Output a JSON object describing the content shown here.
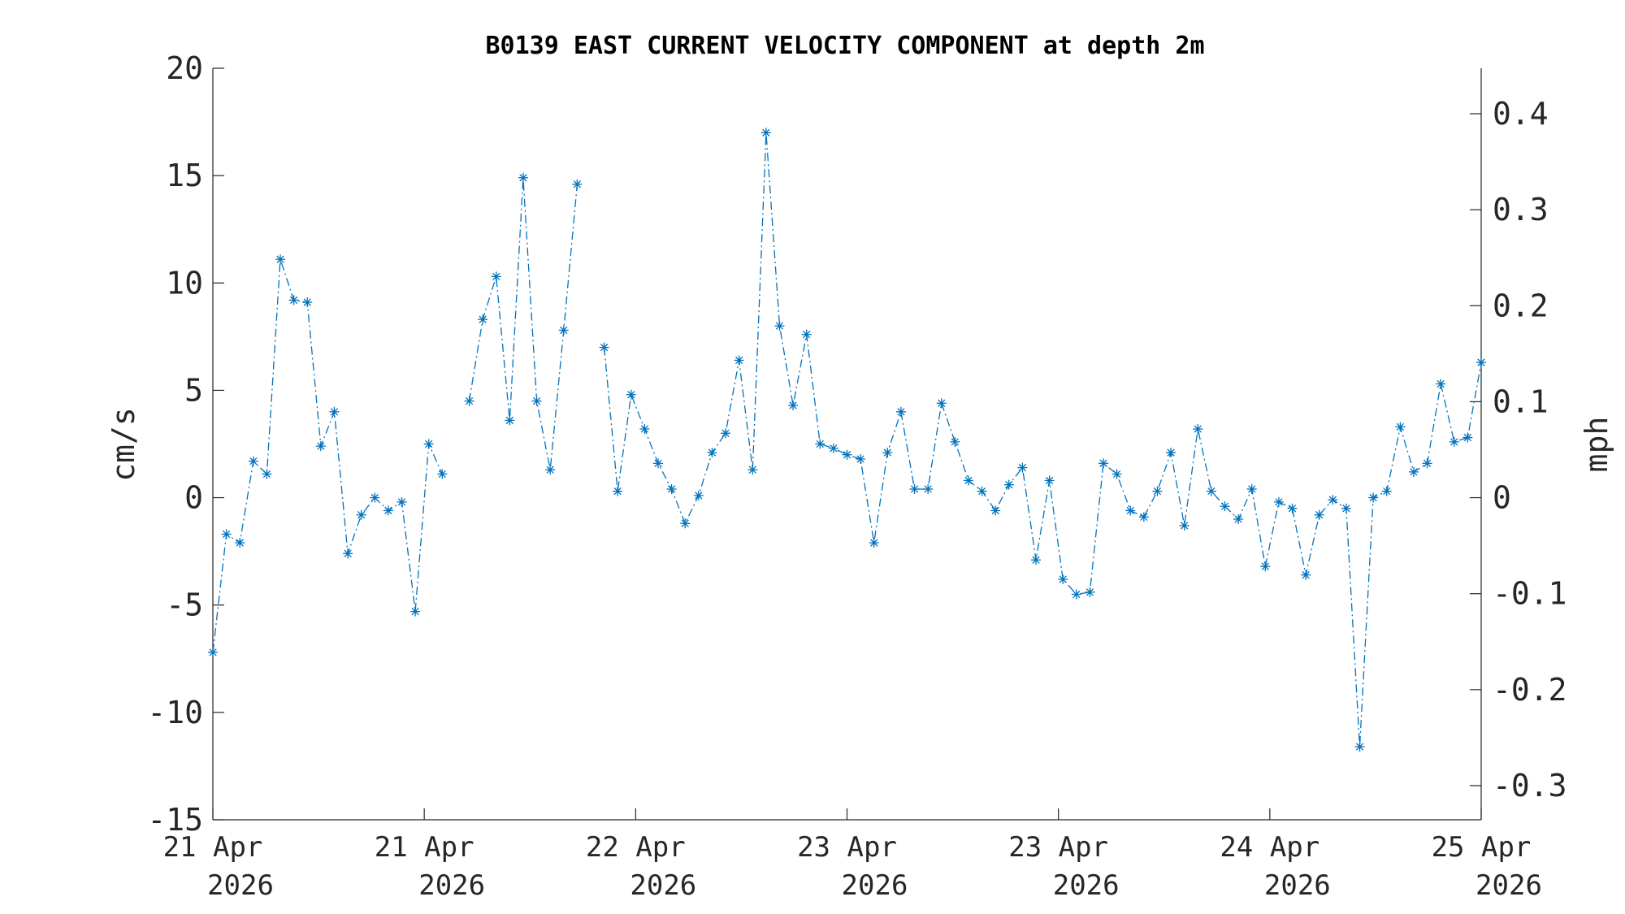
{
  "chart_data": {
    "type": "line",
    "title": "B0139 EAST CURRENT VELOCITY COMPONENT at depth 2m",
    "ylabel": "cm/s",
    "ylabel_right": "mph",
    "ylim": [
      -15,
      20
    ],
    "yticks": [
      "20",
      "15",
      "10",
      "5",
      "0",
      "-5",
      "-10",
      "-15"
    ],
    "yticks_right": [
      "0.4",
      "0.3",
      "0.2",
      "0.1",
      "0",
      "-0.1",
      "-0.2",
      "-0.3"
    ],
    "xticks": [
      {
        "line1": "21 Apr",
        "line2": "2026"
      },
      {
        "line1": "21 Apr",
        "line2": "2026"
      },
      {
        "line1": "22 Apr",
        "line2": "2026"
      },
      {
        "line1": "23 Apr",
        "line2": "2026"
      },
      {
        "line1": "23 Apr",
        "line2": "2026"
      },
      {
        "line1": "24 Apr",
        "line2": "2026"
      },
      {
        "line1": "25 Apr",
        "line2": "2026"
      }
    ],
    "grid": false,
    "series_color": "#0072BD",
    "series": [
      {
        "values": [
          -7.2,
          -1.7,
          -2.1,
          1.7,
          1.1,
          11.1,
          9.2,
          9.1,
          2.4,
          4.0,
          -2.6,
          -0.8,
          0.0,
          -0.6,
          -0.2,
          -5.3,
          2.5,
          1.1,
          null,
          4.5,
          8.3,
          10.3,
          3.6,
          14.9,
          4.5,
          1.3,
          7.8,
          14.6,
          null,
          7.0,
          0.3,
          4.8,
          3.2,
          1.6,
          0.4,
          -1.2,
          0.1,
          2.1,
          3.0,
          6.4,
          1.3,
          17.0,
          8.0,
          4.3,
          7.6,
          2.5,
          2.3,
          2.0,
          1.8,
          -2.1,
          2.1,
          4.0,
          0.4,
          0.4,
          4.4,
          2.6,
          0.8,
          0.3,
          -0.6,
          0.6,
          1.4,
          -2.9,
          0.8,
          -3.8,
          -4.5,
          -4.4,
          1.6,
          1.1,
          -0.6,
          -0.9,
          0.3,
          2.1,
          -1.3,
          3.2,
          0.3,
          -0.4,
          -1.0,
          0.4,
          -3.2,
          -0.2,
          -0.5,
          -3.6,
          -0.8,
          -0.1,
          -0.5,
          -11.6,
          0.0,
          0.3,
          3.3,
          1.2,
          1.6,
          5.3,
          2.6,
          2.8,
          6.3
        ]
      }
    ]
  }
}
